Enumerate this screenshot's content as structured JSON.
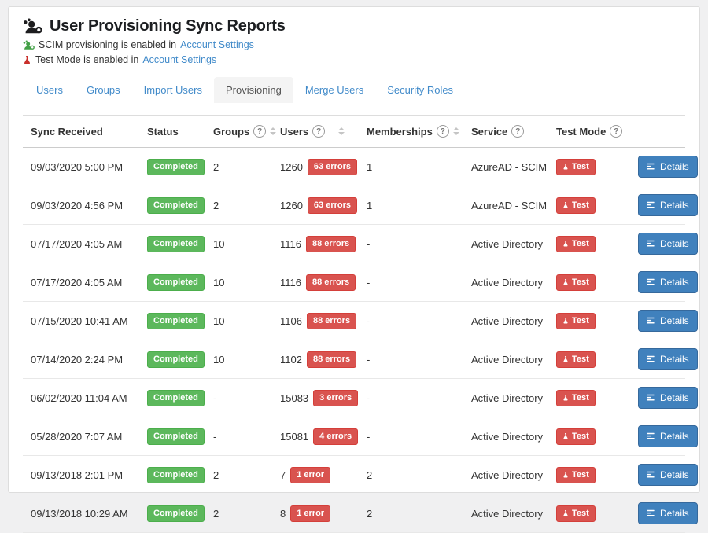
{
  "header": {
    "title": "User Provisioning Sync Reports",
    "scim_notice": {
      "text": "SCIM provisioning is enabled in",
      "link": "Account Settings"
    },
    "test_notice": {
      "text": "Test Mode is enabled in",
      "link": "Account Settings"
    }
  },
  "tabs": [
    {
      "label": "Users",
      "active": false
    },
    {
      "label": "Groups",
      "active": false
    },
    {
      "label": "Import Users",
      "active": false
    },
    {
      "label": "Provisioning",
      "active": true
    },
    {
      "label": "Merge Users",
      "active": false
    },
    {
      "label": "Security Roles",
      "active": false
    }
  ],
  "table": {
    "columns": [
      {
        "label": "Sync Received",
        "help": false,
        "sortable": false
      },
      {
        "label": "Status",
        "help": false,
        "sortable": false
      },
      {
        "label": "Groups",
        "help": true,
        "sortable": true
      },
      {
        "label": "Users",
        "help": true,
        "sortable": true
      },
      {
        "label": "Memberships",
        "help": true,
        "sortable": true
      },
      {
        "label": "Service",
        "help": true,
        "sortable": false
      },
      {
        "label": "Test Mode",
        "help": true,
        "sortable": false
      }
    ],
    "help_glyph": "?",
    "test_badge_label": "Test",
    "details_button_label": "Details",
    "rows": [
      {
        "sync_received": "09/03/2020 5:00 PM",
        "status": "Completed",
        "groups": "2",
        "users": "1260",
        "errors": "63 errors",
        "memberships": "1",
        "service": "AzureAD - SCIM"
      },
      {
        "sync_received": "09/03/2020 4:56 PM",
        "status": "Completed",
        "groups": "2",
        "users": "1260",
        "errors": "63 errors",
        "memberships": "1",
        "service": "AzureAD - SCIM"
      },
      {
        "sync_received": "07/17/2020 4:05 AM",
        "status": "Completed",
        "groups": "10",
        "users": "1116",
        "errors": "88 errors",
        "memberships": "-",
        "service": "Active Directory"
      },
      {
        "sync_received": "07/17/2020 4:05 AM",
        "status": "Completed",
        "groups": "10",
        "users": "1116",
        "errors": "88 errors",
        "memberships": "-",
        "service": "Active Directory"
      },
      {
        "sync_received": "07/15/2020 10:41 AM",
        "status": "Completed",
        "groups": "10",
        "users": "1106",
        "errors": "88 errors",
        "memberships": "-",
        "service": "Active Directory"
      },
      {
        "sync_received": "07/14/2020 2:24 PM",
        "status": "Completed",
        "groups": "10",
        "users": "1102",
        "errors": "88 errors",
        "memberships": "-",
        "service": "Active Directory"
      },
      {
        "sync_received": "06/02/2020 11:04 AM",
        "status": "Completed",
        "groups": "-",
        "users": "15083",
        "errors": "3 errors",
        "memberships": "-",
        "service": "Active Directory"
      },
      {
        "sync_received": "05/28/2020 7:07 AM",
        "status": "Completed",
        "groups": "-",
        "users": "15081",
        "errors": "4 errors",
        "memberships": "-",
        "service": "Active Directory"
      },
      {
        "sync_received": "09/13/2018 2:01 PM",
        "status": "Completed",
        "groups": "2",
        "users": "7",
        "errors": "1 error",
        "memberships": "2",
        "service": "Active Directory"
      },
      {
        "sync_received": "09/13/2018 10:29 AM",
        "status": "Completed",
        "groups": "2",
        "users": "8",
        "errors": "1 error",
        "memberships": "2",
        "service": "Active Directory"
      }
    ]
  },
  "colors": {
    "success_green": "#5cb85c",
    "danger_red": "#d9534f",
    "button_blue": "#4081bd",
    "link_blue": "#428bca",
    "scim_icon_green": "#43a047",
    "flask_icon_red": "#c9302c"
  }
}
